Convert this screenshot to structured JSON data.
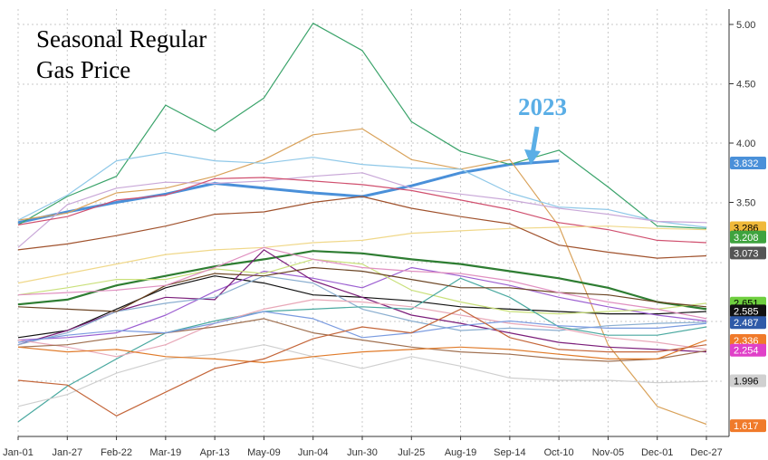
{
  "chart_data": {
    "type": "line",
    "title_lines": [
      "Seasonal Regular",
      "Gas Price"
    ],
    "annotation": "2023",
    "annotation_color": "#5aaee6",
    "xlabel": "",
    "ylabel": "",
    "x_ticks": [
      "Jan-01",
      "Jan-27",
      "Feb-22",
      "Mar-19",
      "Apr-13",
      "May-09",
      "Jun-04",
      "Jun-30",
      "Jul-25",
      "Aug-19",
      "Sep-14",
      "Oct-10",
      "Nov-05",
      "Dec-01",
      "Dec-27"
    ],
    "y_ticks": [
      "5.00",
      "4.50",
      "4.00",
      "3.50"
    ],
    "y_tick_values": [
      5.0,
      4.5,
      4.0,
      3.5
    ],
    "ylim": [
      1.55,
      5.1
    ],
    "grid": true,
    "right_labels": [
      {
        "text": "3.832",
        "value": 3.832,
        "color": "#4a90d9"
      },
      {
        "text": "3.286",
        "value": 3.286,
        "color": "#f0b93a"
      },
      {
        "text": "3.208",
        "value": 3.208,
        "color": "#3ea33e"
      },
      {
        "text": "3.073",
        "value": 3.073,
        "color": "#555555"
      },
      {
        "text": "2.651",
        "value": 2.651,
        "color": "#6fcf3f"
      },
      {
        "text": "2.585",
        "value": 2.585,
        "color": "#111111"
      },
      {
        "text": "2.487",
        "value": 2.487,
        "color": "#2f5aa8"
      },
      {
        "text": "2.336",
        "value": 2.336,
        "color": "#f07a2a"
      },
      {
        "text": "2.254",
        "value": 2.254,
        "color": "#e040c8"
      },
      {
        "text": "1.996",
        "value": 1.996,
        "color": "#d0d0d0"
      },
      {
        "text": "1.617",
        "value": 1.617,
        "color": "#f07a2a"
      }
    ],
    "series": [
      {
        "color": "#4a90d9",
        "width": 3,
        "values": [
          3.33,
          3.42,
          3.5,
          3.57,
          3.66,
          3.62,
          3.58,
          3.55,
          3.64,
          3.75,
          3.82,
          3.85,
          null,
          null,
          null
        ]
      },
      {
        "color": "#3aa36a",
        "width": 1.2,
        "values": [
          3.31,
          3.55,
          3.72,
          4.32,
          4.1,
          4.38,
          5.01,
          4.78,
          4.18,
          3.93,
          3.82,
          3.94,
          3.63,
          3.3,
          3.28
        ]
      },
      {
        "color": "#d9a25a",
        "width": 1.2,
        "values": [
          3.35,
          3.41,
          3.58,
          3.62,
          3.72,
          3.86,
          4.07,
          4.12,
          3.86,
          3.78,
          3.86,
          3.3,
          2.3,
          1.78,
          1.63
        ]
      },
      {
        "color": "#8fc8e8",
        "width": 1.2,
        "values": [
          3.35,
          3.56,
          3.85,
          3.92,
          3.85,
          3.83,
          3.88,
          3.82,
          3.79,
          3.78,
          3.58,
          3.46,
          3.44,
          3.34,
          3.29
        ]
      },
      {
        "color": "#c9a8d8",
        "width": 1.2,
        "values": [
          3.12,
          3.48,
          3.62,
          3.67,
          3.66,
          3.68,
          3.72,
          3.75,
          3.62,
          3.57,
          3.52,
          3.45,
          3.4,
          3.34,
          3.33
        ]
      },
      {
        "color": "#d0506f",
        "width": 1.2,
        "values": [
          3.31,
          3.38,
          3.52,
          3.56,
          3.7,
          3.71,
          3.68,
          3.65,
          3.6,
          3.52,
          3.44,
          3.33,
          3.27,
          3.18,
          3.16
        ]
      },
      {
        "color": "#f0d88a",
        "width": 1.2,
        "values": [
          2.82,
          2.9,
          2.98,
          3.06,
          3.1,
          3.12,
          3.16,
          3.18,
          3.24,
          3.26,
          3.28,
          3.29,
          3.3,
          3.28,
          3.27
        ]
      },
      {
        "color": "#a0522d",
        "width": 1.2,
        "values": [
          3.1,
          3.15,
          3.22,
          3.3,
          3.4,
          3.42,
          3.5,
          3.55,
          3.45,
          3.38,
          3.32,
          3.14,
          3.08,
          3.03,
          3.05
        ]
      },
      {
        "color": "#2e7d32",
        "width": 2.2,
        "values": [
          2.64,
          2.68,
          2.8,
          2.88,
          2.96,
          3.02,
          3.09,
          3.07,
          3.02,
          2.98,
          2.92,
          2.86,
          2.78,
          2.66,
          2.6
        ]
      },
      {
        "color": "#111111",
        "width": 1.2,
        "values": [
          2.36,
          2.42,
          2.6,
          2.78,
          2.88,
          2.82,
          2.72,
          2.7,
          2.67,
          2.62,
          2.6,
          2.58,
          2.56,
          2.56,
          2.58
        ]
      },
      {
        "color": "#9c5fd1",
        "width": 1.2,
        "values": [
          2.34,
          2.36,
          2.4,
          2.55,
          2.75,
          2.92,
          2.86,
          2.78,
          2.95,
          2.88,
          2.8,
          2.7,
          2.62,
          2.55,
          2.5
        ]
      },
      {
        "color": "#7b1e7a",
        "width": 1.2,
        "values": [
          2.3,
          2.42,
          2.58,
          2.7,
          2.68,
          3.1,
          2.84,
          2.7,
          2.55,
          2.48,
          2.4,
          2.32,
          2.28,
          2.26,
          2.24
        ]
      },
      {
        "color": "#8aaed0",
        "width": 1.2,
        "values": [
          2.3,
          2.4,
          2.58,
          2.65,
          2.7,
          2.88,
          2.82,
          2.6,
          2.5,
          2.42,
          2.44,
          2.42,
          2.46,
          2.48,
          2.49
        ]
      },
      {
        "color": "#c9e07a",
        "width": 1.2,
        "values": [
          2.72,
          2.78,
          2.85,
          2.85,
          2.94,
          2.9,
          3.02,
          2.98,
          2.76,
          2.66,
          2.58,
          2.56,
          2.58,
          2.6,
          2.65
        ]
      },
      {
        "color": "#4aa9a0",
        "width": 1.2,
        "values": [
          1.65,
          1.95,
          2.18,
          2.4,
          2.5,
          2.58,
          2.6,
          2.62,
          2.6,
          2.86,
          2.7,
          2.45,
          2.38,
          2.38,
          2.45
        ]
      },
      {
        "color": "#e8a8b8",
        "width": 1.2,
        "values": [
          2.34,
          2.28,
          2.2,
          2.3,
          2.48,
          2.6,
          2.68,
          2.66,
          2.62,
          2.55,
          2.48,
          2.44,
          2.36,
          2.32,
          2.26
        ]
      },
      {
        "color": "#a07050",
        "width": 1.2,
        "values": [
          2.28,
          2.3,
          2.36,
          2.4,
          2.45,
          2.52,
          2.4,
          2.34,
          2.28,
          2.24,
          2.22,
          2.18,
          2.16,
          2.18,
          2.25
        ]
      },
      {
        "color": "#7a9be0",
        "width": 1.2,
        "values": [
          2.32,
          2.38,
          2.42,
          2.4,
          2.48,
          2.58,
          2.52,
          2.36,
          2.4,
          2.46,
          2.5,
          2.46,
          2.44,
          2.44,
          2.48
        ]
      },
      {
        "color": "#cfcfcf",
        "width": 1.2,
        "values": [
          1.78,
          1.88,
          2.06,
          2.18,
          2.22,
          2.3,
          2.2,
          2.1,
          2.2,
          2.12,
          2.02,
          2.0,
          2.0,
          1.98,
          1.99
        ]
      },
      {
        "color": "#e07b2a",
        "width": 1.2,
        "values": [
          2.28,
          2.24,
          2.26,
          2.2,
          2.18,
          2.15,
          2.2,
          2.24,
          2.26,
          2.28,
          2.26,
          2.22,
          2.18,
          2.18,
          2.34
        ]
      },
      {
        "color": "#c4663a",
        "width": 1.2,
        "values": [
          2.0,
          1.96,
          1.7,
          1.9,
          2.1,
          2.18,
          2.35,
          2.45,
          2.4,
          2.6,
          2.36,
          2.26,
          2.24,
          2.24,
          2.3
        ]
      },
      {
        "color": "#6b4423",
        "width": 1.2,
        "values": [
          2.62,
          2.6,
          2.58,
          2.8,
          2.9,
          2.88,
          2.95,
          2.92,
          2.85,
          2.78,
          2.78,
          2.74,
          2.72,
          2.66,
          2.62
        ]
      },
      {
        "color": "#e090c0",
        "width": 1.2,
        "values": [
          2.72,
          2.74,
          2.76,
          2.8,
          2.95,
          3.12,
          3.02,
          2.95,
          2.92,
          2.9,
          2.84,
          2.74,
          2.66,
          2.6,
          2.52
        ]
      }
    ]
  }
}
